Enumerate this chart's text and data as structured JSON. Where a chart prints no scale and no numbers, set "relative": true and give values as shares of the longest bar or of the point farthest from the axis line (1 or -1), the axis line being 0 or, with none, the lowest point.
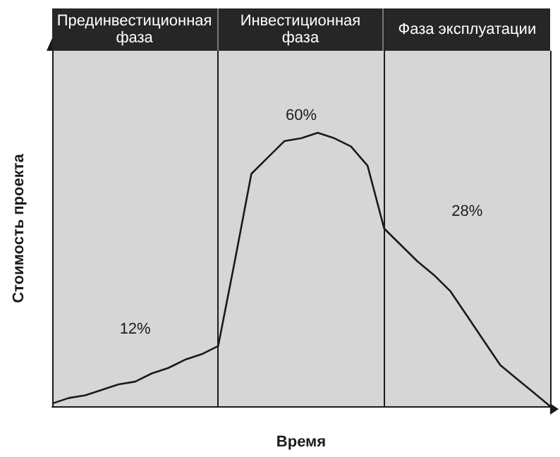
{
  "chart_data": {
    "type": "line",
    "relative": true,
    "xlabel": "Время",
    "ylabel": "Стоимость проекта",
    "categories": [
      null,
      null,
      null,
      null,
      null,
      null,
      null,
      null,
      null,
      null,
      null,
      null,
      null,
      null,
      null,
      null,
      null,
      null,
      null,
      null,
      null,
      null,
      null,
      null,
      null,
      null,
      null,
      null,
      null,
      null,
      null
    ],
    "grid": false,
    "marker": "none",
    "line_style": "solid",
    "series": [
      {
        "color": "#1a1a1a",
        "values": [
          0.01,
          0.03,
          0.04,
          0.06,
          0.08,
          0.09,
          0.12,
          0.14,
          0.17,
          0.19,
          0.22,
          0.53,
          0.85,
          0.91,
          0.97,
          0.98,
          1,
          0.98,
          0.95,
          0.88,
          0.65,
          0.59,
          0.53,
          0.48,
          0.42,
          0.33,
          0.24,
          0.15,
          0.1,
          0.05,
          0
        ]
      }
    ],
    "annotations": [
      "Прединвестиционная фаза",
      "Инвестиционная фаза",
      "Фаза эксплуатации",
      "12%",
      "60%",
      "28%"
    ]
  }
}
